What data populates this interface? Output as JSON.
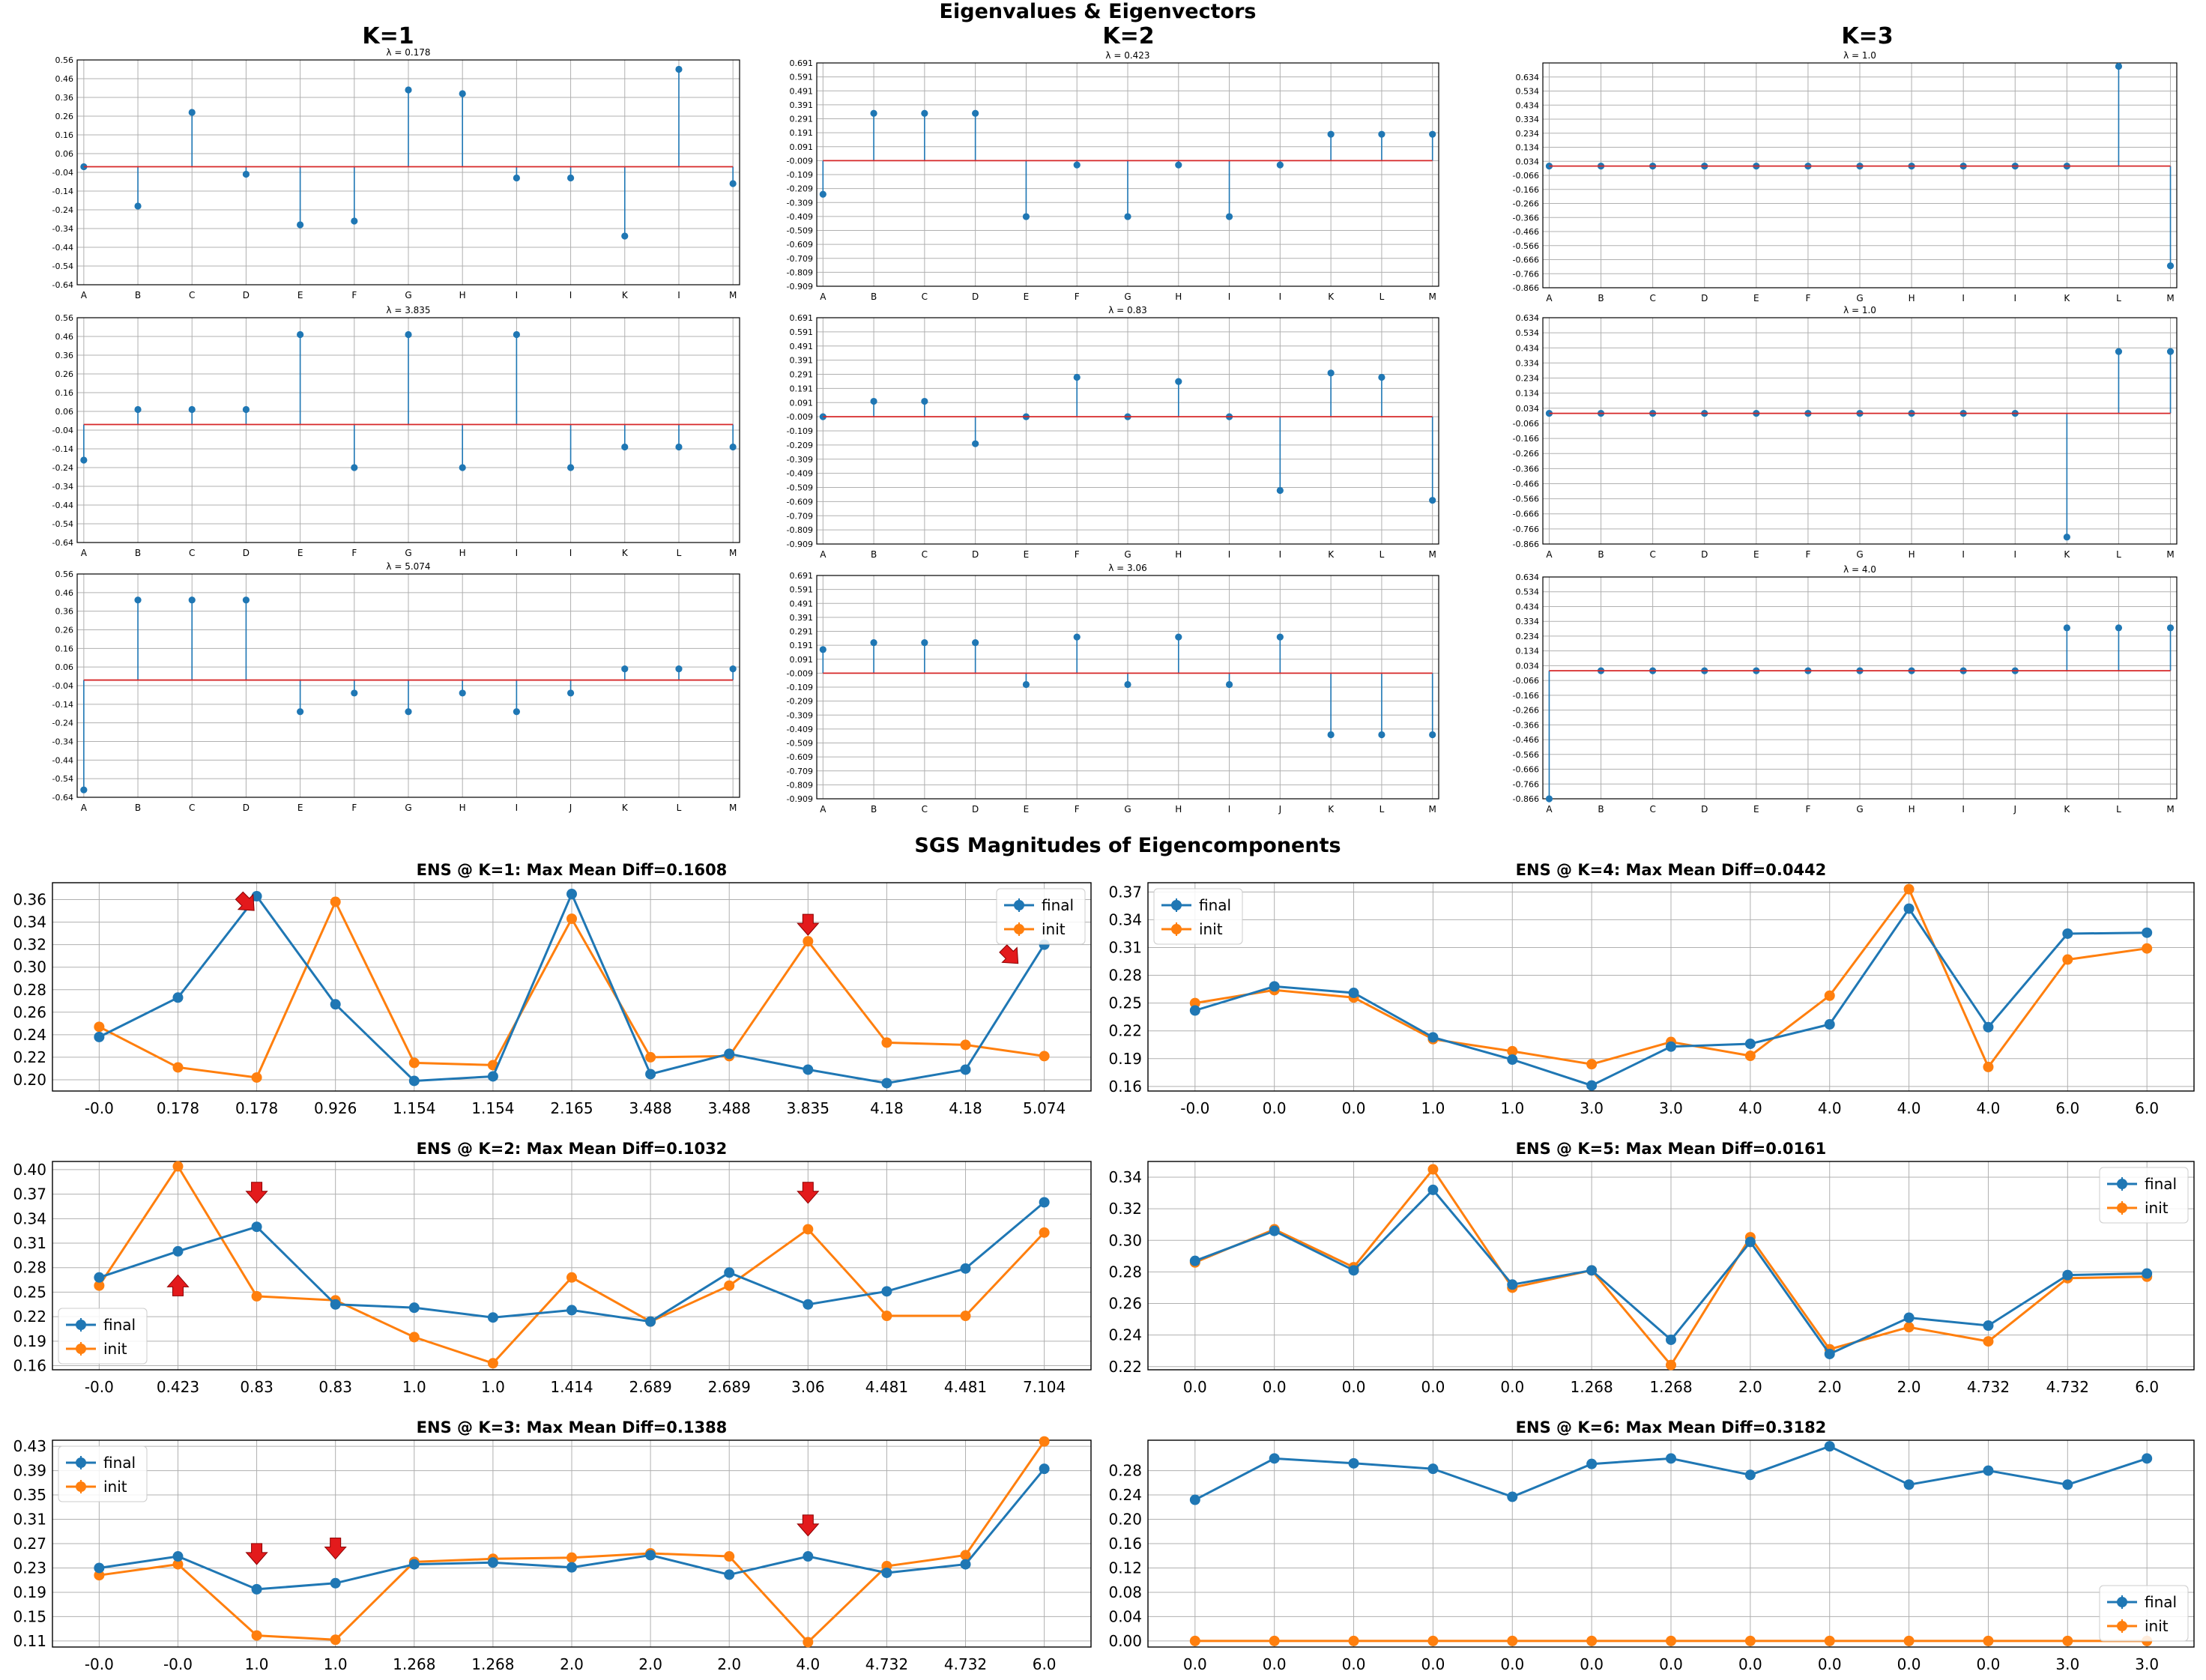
{
  "figure": {
    "top_title": "Eigenvalues & Eigenvectors",
    "column_titles": [
      "K=1",
      "K=2",
      "K=3"
    ],
    "section_title": "SGS Magnitudes of Eigencomponents"
  },
  "colors": {
    "stem": "#1f77b4",
    "baseline": "#d62728",
    "final": "#1f77b4",
    "init": "#ff7f0e",
    "arrow": "#e31a1c",
    "grid": "#b0b0b0"
  },
  "chart_data": [
    {
      "type": "stem",
      "panel": "K=1 row1",
      "subtitle": "λ = 0.178",
      "categories": [
        "A",
        "B",
        "C",
        "D",
        "E",
        "F",
        "G",
        "H",
        "I",
        "I",
        "K",
        "I",
        "M"
      ],
      "values": [
        -0.01,
        -0.22,
        0.28,
        -0.05,
        -0.32,
        -0.3,
        0.4,
        0.38,
        -0.07,
        -0.07,
        -0.38,
        0.51,
        -0.1
      ],
      "baseline": -0.01,
      "ylim": [
        -0.64,
        0.56
      ],
      "yticks": [
        "0.56",
        "0.46",
        "0.36",
        "0.26",
        "0.16",
        "0.06",
        "-0.04",
        "-0.14",
        "-0.24",
        "-0.34",
        "-0.44",
        "-0.54",
        "-0.64"
      ]
    },
    {
      "type": "stem",
      "panel": "K=2 row1",
      "subtitle": "λ = 0.423",
      "categories": [
        "A",
        "B",
        "C",
        "D",
        "E",
        "F",
        "G",
        "H",
        "I",
        "I",
        "K",
        "L",
        "M"
      ],
      "values": [
        -0.25,
        0.33,
        0.33,
        0.33,
        -0.41,
        -0.04,
        -0.41,
        -0.04,
        -0.41,
        -0.04,
        0.18,
        0.18,
        0.18
      ],
      "baseline": -0.009,
      "ylim": [
        -0.909,
        0.691
      ],
      "yticks": [
        "0.691",
        "0.591",
        "0.491",
        "0.391",
        "0.291",
        "0.191",
        "0.091",
        "-0.009",
        "-0.109",
        "-0.209",
        "-0.309",
        "-0.409",
        "-0.509",
        "-0.609",
        "-0.709",
        "-0.809",
        "-0.909"
      ]
    },
    {
      "type": "stem",
      "panel": "K=3 row1",
      "subtitle": "λ = 1.0",
      "categories": [
        "A",
        "B",
        "C",
        "D",
        "E",
        "F",
        "G",
        "H",
        "I",
        "I",
        "K",
        "L",
        "M"
      ],
      "values": [
        0.0,
        0.0,
        0.0,
        0.0,
        0.0,
        0.0,
        0.0,
        0.0,
        0.0,
        0.0,
        0.0,
        0.71,
        -0.71
      ],
      "baseline": 0.0,
      "ylim": [
        -0.866,
        0.734
      ],
      "yticks": [
        "0.634",
        "0.534",
        "0.434",
        "0.334",
        "0.234",
        "0.134",
        "0.034",
        "-0.066",
        "-0.166",
        "-0.266",
        "-0.366",
        "-0.466",
        "-0.566",
        "-0.666",
        "-0.766",
        "-0.866"
      ]
    },
    {
      "type": "stem",
      "panel": "K=1 row2",
      "subtitle": "λ = 3.835",
      "categories": [
        "A",
        "B",
        "C",
        "D",
        "E",
        "F",
        "G",
        "H",
        "I",
        "I",
        "K",
        "L",
        "M"
      ],
      "values": [
        -0.2,
        0.07,
        0.07,
        0.07,
        0.47,
        -0.24,
        0.47,
        -0.24,
        0.47,
        -0.24,
        -0.13,
        -0.13,
        -0.13
      ],
      "baseline": -0.01,
      "ylim": [
        -0.64,
        0.56
      ],
      "yticks": [
        "0.56",
        "0.46",
        "0.36",
        "0.26",
        "0.16",
        "0.06",
        "-0.04",
        "-0.14",
        "-0.24",
        "-0.34",
        "-0.44",
        "-0.54",
        "-0.64"
      ]
    },
    {
      "type": "stem",
      "panel": "K=2 row2",
      "subtitle": "λ = 0.83",
      "categories": [
        "A",
        "B",
        "C",
        "D",
        "E",
        "F",
        "G",
        "H",
        "I",
        "I",
        "K",
        "L",
        "M"
      ],
      "values": [
        -0.009,
        0.1,
        0.1,
        -0.2,
        -0.009,
        0.27,
        -0.009,
        0.24,
        -0.009,
        -0.53,
        0.3,
        0.27,
        -0.6
      ],
      "baseline": -0.009,
      "ylim": [
        -0.909,
        0.691
      ],
      "yticks": [
        "0.691",
        "0.591",
        "0.491",
        "0.391",
        "0.291",
        "0.191",
        "0.091",
        "-0.009",
        "-0.109",
        "-0.209",
        "-0.309",
        "-0.409",
        "-0.509",
        "-0.609",
        "-0.709",
        "-0.809",
        "-0.909"
      ]
    },
    {
      "type": "stem",
      "panel": "K=3 row2",
      "subtitle": "λ = 1.0",
      "categories": [
        "A",
        "B",
        "C",
        "D",
        "E",
        "F",
        "G",
        "H",
        "I",
        "I",
        "K",
        "L",
        "M"
      ],
      "values": [
        0.0,
        0.0,
        0.0,
        0.0,
        0.0,
        0.0,
        0.0,
        0.0,
        0.0,
        0.0,
        -0.82,
        0.41,
        0.41
      ],
      "baseline": 0.0,
      "ylim": [
        -0.866,
        0.634
      ],
      "yticks": [
        "0.634",
        "0.534",
        "0.434",
        "0.334",
        "0.234",
        "0.134",
        "0.034",
        "-0.066",
        "-0.166",
        "-0.266",
        "-0.366",
        "-0.466",
        "-0.566",
        "-0.666",
        "-0.766",
        "-0.866"
      ]
    },
    {
      "type": "stem",
      "panel": "K=1 row3",
      "subtitle": "λ = 5.074",
      "categories": [
        "A",
        "B",
        "C",
        "D",
        "E",
        "F",
        "G",
        "H",
        "I",
        "J",
        "K",
        "L",
        "M"
      ],
      "values": [
        -0.6,
        0.42,
        0.42,
        0.42,
        -0.18,
        -0.08,
        -0.18,
        -0.08,
        -0.18,
        -0.08,
        0.05,
        0.05,
        0.05
      ],
      "baseline": -0.01,
      "ylim": [
        -0.64,
        0.56
      ],
      "yticks": [
        "0.56",
        "0.46",
        "0.36",
        "0.26",
        "0.16",
        "0.06",
        "-0.04",
        "-0.14",
        "-0.24",
        "-0.34",
        "-0.44",
        "-0.54",
        "-0.64"
      ]
    },
    {
      "type": "stem",
      "panel": "K=2 row3",
      "subtitle": "λ = 3.06",
      "categories": [
        "A",
        "B",
        "C",
        "D",
        "E",
        "F",
        "G",
        "H",
        "I",
        "J",
        "K",
        "L",
        "M"
      ],
      "values": [
        0.16,
        0.21,
        0.21,
        0.21,
        -0.09,
        0.25,
        -0.09,
        0.25,
        -0.09,
        0.25,
        -0.45,
        -0.45,
        -0.45
      ],
      "baseline": -0.009,
      "ylim": [
        -0.909,
        0.691
      ],
      "yticks": [
        "0.691",
        "0.591",
        "0.491",
        "0.391",
        "0.291",
        "0.191",
        "0.091",
        "-0.009",
        "-0.109",
        "-0.209",
        "-0.309",
        "-0.409",
        "-0.509",
        "-0.609",
        "-0.709",
        "-0.809",
        "-0.909"
      ]
    },
    {
      "type": "stem",
      "panel": "K=3 row3",
      "subtitle": "λ = 4.0",
      "categories": [
        "A",
        "B",
        "C",
        "D",
        "E",
        "F",
        "G",
        "H",
        "I",
        "J",
        "K",
        "L",
        "M"
      ],
      "values": [
        -0.866,
        0.0,
        0.0,
        0.0,
        0.0,
        0.0,
        0.0,
        0.0,
        0.0,
        0.0,
        0.29,
        0.29,
        0.29
      ],
      "baseline": 0.0,
      "ylim": [
        -0.866,
        0.634
      ],
      "yticks": [
        "0.634",
        "0.534",
        "0.434",
        "0.334",
        "0.234",
        "0.134",
        "0.034",
        "-0.066",
        "-0.166",
        "-0.266",
        "-0.366",
        "-0.466",
        "-0.566",
        "-0.666",
        "-0.766",
        "-0.866"
      ]
    },
    {
      "type": "line",
      "panel": "ENS K=1",
      "title": "ENS @ K=1: Max Mean Diff=0.1608",
      "categories": [
        "-0.0",
        "0.178",
        "0.178",
        "0.926",
        "1.154",
        "1.154",
        "2.165",
        "3.488",
        "3.488",
        "3.835",
        "4.18",
        "4.18",
        "5.074"
      ],
      "series": [
        {
          "name": "final",
          "values": [
            0.238,
            0.273,
            0.363,
            0.267,
            0.199,
            0.203,
            0.365,
            0.205,
            0.223,
            0.209,
            0.197,
            0.209,
            0.32
          ]
        },
        {
          "name": "init",
          "values": [
            0.247,
            0.211,
            0.202,
            0.358,
            0.215,
            0.213,
            0.343,
            0.22,
            0.221,
            0.323,
            0.233,
            0.231,
            0.221
          ]
        }
      ],
      "ylim": [
        0.19,
        0.375
      ],
      "yticks": [
        "0.20",
        "0.22",
        "0.24",
        "0.26",
        "0.28",
        "0.30",
        "0.32",
        "0.34",
        "0.36"
      ],
      "legend": "top-right",
      "arrows": [
        {
          "x": 1.9,
          "y": 0.355,
          "dir": "diag"
        },
        {
          "x": 9,
          "y": 0.335,
          "dir": "down"
        },
        {
          "x": 11.6,
          "y": 0.308,
          "dir": "diag"
        }
      ]
    },
    {
      "type": "line",
      "panel": "ENS K=4",
      "title": "ENS @ K=4: Max Mean Diff=0.0442",
      "categories": [
        "-0.0",
        "0.0",
        "0.0",
        "1.0",
        "1.0",
        "3.0",
        "3.0",
        "4.0",
        "4.0",
        "4.0",
        "4.0",
        "6.0",
        "6.0"
      ],
      "series": [
        {
          "name": "final",
          "values": [
            0.242,
            0.268,
            0.261,
            0.213,
            0.189,
            0.161,
            0.203,
            0.206,
            0.227,
            0.352,
            0.224,
            0.325,
            0.326
          ]
        },
        {
          "name": "init",
          "values": [
            0.25,
            0.264,
            0.256,
            0.211,
            0.198,
            0.184,
            0.208,
            0.193,
            0.258,
            0.373,
            0.181,
            0.297,
            0.309
          ]
        }
      ],
      "ylim": [
        0.155,
        0.38
      ],
      "yticks": [
        "0.16",
        "0.19",
        "0.22",
        "0.25",
        "0.28",
        "0.31",
        "0.34",
        "0.37"
      ],
      "legend": "top-left",
      "arrows": []
    },
    {
      "type": "line",
      "panel": "ENS K=2",
      "title": "ENS @ K=2: Max Mean Diff=0.1032",
      "categories": [
        "-0.0",
        "0.423",
        "0.83",
        "0.83",
        "1.0",
        "1.0",
        "1.414",
        "2.689",
        "2.689",
        "3.06",
        "4.481",
        "4.481",
        "7.104"
      ],
      "series": [
        {
          "name": "final",
          "values": [
            0.268,
            0.3,
            0.33,
            0.235,
            0.231,
            0.219,
            0.228,
            0.214,
            0.274,
            0.235,
            0.251,
            0.279,
            0.36
          ]
        },
        {
          "name": "init",
          "values": [
            0.258,
            0.404,
            0.245,
            0.24,
            0.195,
            0.163,
            0.268,
            0.214,
            0.258,
            0.327,
            0.221,
            0.221,
            0.323
          ]
        }
      ],
      "ylim": [
        0.155,
        0.41
      ],
      "yticks": [
        "0.16",
        "0.19",
        "0.22",
        "0.25",
        "0.28",
        "0.31",
        "0.34",
        "0.37",
        "0.40"
      ],
      "legend": "bottom-left",
      "arrows": [
        {
          "x": 1,
          "y": 0.262,
          "dir": "up"
        },
        {
          "x": 2,
          "y": 0.368,
          "dir": "down"
        },
        {
          "x": 9,
          "y": 0.368,
          "dir": "down"
        }
      ]
    },
    {
      "type": "line",
      "panel": "ENS K=5",
      "title": "ENS @ K=5: Max Mean Diff=0.0161",
      "categories": [
        "0.0",
        "0.0",
        "0.0",
        "0.0",
        "0.0",
        "1.268",
        "1.268",
        "2.0",
        "2.0",
        "2.0",
        "4.732",
        "4.732",
        "6.0"
      ],
      "series": [
        {
          "name": "final",
          "values": [
            0.287,
            0.306,
            0.281,
            0.332,
            0.272,
            0.281,
            0.237,
            0.299,
            0.228,
            0.251,
            0.246,
            0.278,
            0.279
          ]
        },
        {
          "name": "init",
          "values": [
            0.286,
            0.307,
            0.283,
            0.345,
            0.27,
            0.281,
            0.221,
            0.302,
            0.231,
            0.245,
            0.236,
            0.276,
            0.277
          ]
        }
      ],
      "ylim": [
        0.218,
        0.35
      ],
      "yticks": [
        "0.22",
        "0.24",
        "0.26",
        "0.28",
        "0.30",
        "0.32",
        "0.34"
      ],
      "legend": "top-right",
      "arrows": []
    },
    {
      "type": "line",
      "panel": "ENS K=3",
      "title": "ENS @ K=3: Max Mean Diff=0.1388",
      "categories": [
        "-0.0",
        "-0.0",
        "1.0",
        "1.0",
        "1.268",
        "1.268",
        "2.0",
        "2.0",
        "2.0",
        "4.0",
        "4.732",
        "4.732",
        "6.0"
      ],
      "series": [
        {
          "name": "final",
          "values": [
            0.23,
            0.249,
            0.195,
            0.205,
            0.236,
            0.239,
            0.231,
            0.251,
            0.219,
            0.249,
            0.222,
            0.236,
            0.393
          ]
        },
        {
          "name": "init",
          "values": [
            0.218,
            0.236,
            0.119,
            0.112,
            0.24,
            0.245,
            0.247,
            0.254,
            0.249,
            0.108,
            0.233,
            0.251,
            0.438
          ]
        }
      ],
      "ylim": [
        0.1,
        0.44
      ],
      "yticks": [
        "0.11",
        "0.15",
        "0.19",
        "0.23",
        "0.27",
        "0.31",
        "0.35",
        "0.39",
        "0.43"
      ],
      "legend": "top-left",
      "arrows": [
        {
          "x": 2,
          "y": 0.248,
          "dir": "down"
        },
        {
          "x": 3,
          "y": 0.257,
          "dir": "down"
        },
        {
          "x": 9,
          "y": 0.295,
          "dir": "down"
        }
      ]
    },
    {
      "type": "line",
      "panel": "ENS K=6",
      "title": "ENS @ K=6: Max Mean Diff=0.3182",
      "categories": [
        "0.0",
        "0.0",
        "0.0",
        "0.0",
        "0.0",
        "0.0",
        "0.0",
        "0.0",
        "0.0",
        "0.0",
        "0.0",
        "3.0",
        "3.0"
      ],
      "series": [
        {
          "name": "final",
          "values": [
            0.232,
            0.3,
            0.292,
            0.283,
            0.237,
            0.291,
            0.3,
            0.273,
            0.32,
            0.257,
            0.28,
            0.257,
            0.3
          ]
        },
        {
          "name": "init",
          "values": [
            0.0,
            0.0,
            0.0,
            0.0,
            0.0,
            0.0,
            0.0,
            0.0,
            0.0,
            0.0,
            0.0,
            0.0,
            0.0
          ]
        }
      ],
      "ylim": [
        -0.01,
        0.33
      ],
      "yticks": [
        "0.00",
        "0.04",
        "0.08",
        "0.12",
        "0.16",
        "0.20",
        "0.24",
        "0.28"
      ],
      "legend": "bottom-right",
      "arrows": []
    }
  ]
}
